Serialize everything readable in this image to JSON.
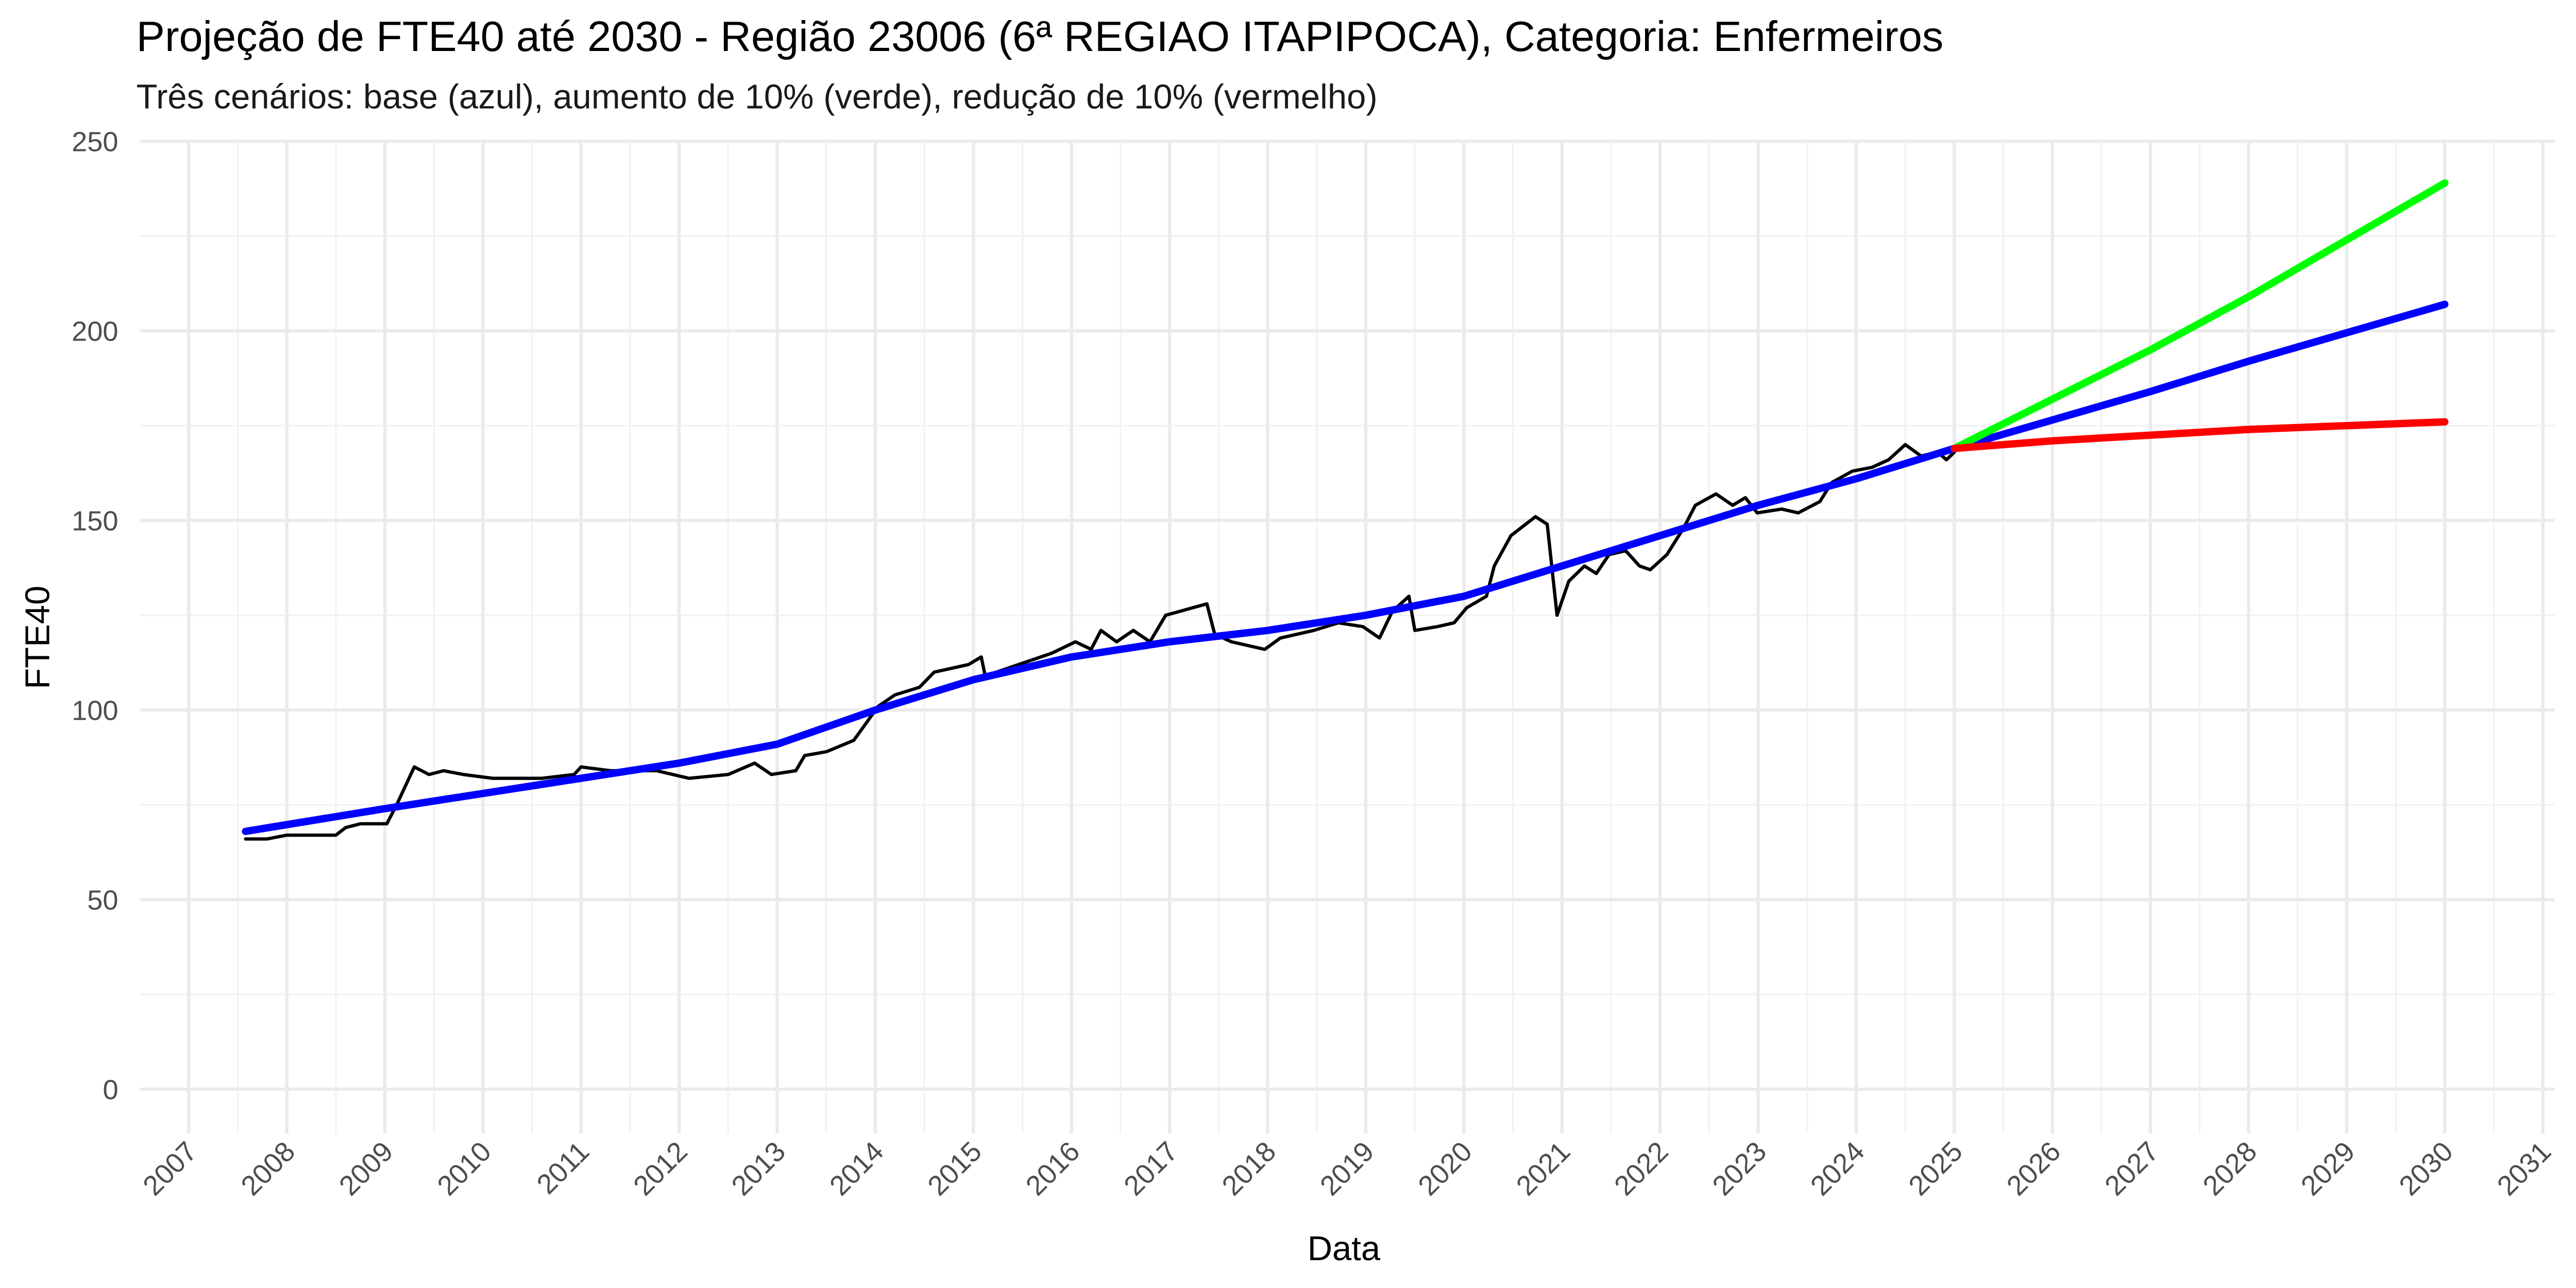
{
  "chart_data": {
    "type": "line",
    "title": "Projeção de FTE40 até 2030 - Região 23006 (6ª REGIAO ITAPIPOCA), Categoria: Enfermeiros",
    "subtitle": "Três cenários: base (azul), aumento de 10% (verde), redução de 10% (vermelho)",
    "x_label": "Data",
    "y_label": "FTE40",
    "xlim": [
      2006.5,
      2031.12
    ],
    "xticks": [
      2007,
      2008,
      2009,
      2010,
      2011,
      2012,
      2013,
      2014,
      2015,
      2016,
      2017,
      2018,
      2019,
      2020,
      2021,
      2022,
      2023,
      2024,
      2025,
      2026,
      2027,
      2028,
      2029,
      2030,
      2031
    ],
    "ylim": [
      -11.7,
      250
    ],
    "yticks": [
      0,
      50,
      100,
      150,
      200,
      250
    ],
    "grid": true,
    "series": [
      {
        "color": "#000000",
        "width": 2,
        "x": [
          2007.58,
          2007.8,
          2008.0,
          2008.5,
          2008.6,
          2008.75,
          2009.02,
          2009.12,
          2009.3,
          2009.45,
          2009.6,
          2009.8,
          2010.1,
          2010.6,
          2010.93,
          2011.0,
          2011.3,
          2011.77,
          2012.1,
          2012.5,
          2012.77,
          2012.94,
          2013.19,
          2013.28,
          2013.5,
          2013.78,
          2014.03,
          2014.2,
          2014.45,
          2014.6,
          2014.95,
          2015.08,
          2015.12,
          2015.8,
          2016.04,
          2016.2,
          2016.3,
          2016.46,
          2016.63,
          2016.8,
          2016.96,
          2017.38,
          2017.46,
          2017.63,
          2017.97,
          2018.13,
          2018.3,
          2018.47,
          2018.72,
          2018.97,
          2019.14,
          2019.27,
          2019.44,
          2019.5,
          2019.73,
          2019.9,
          2020.03,
          2020.23,
          2020.31,
          2020.48,
          2020.73,
          2020.85,
          2020.95,
          2021.07,
          2021.23,
          2021.35,
          2021.48,
          2021.65,
          2021.79,
          2021.9,
          2022.07,
          2022.24,
          2022.36,
          2022.57,
          2022.74,
          2022.87,
          2022.99,
          2023.24,
          2023.41,
          2023.63,
          2023.75,
          2023.96,
          2024.16,
          2024.33,
          2024.5,
          2024.66,
          2024.83,
          2024.92,
          2025.0
        ],
        "values": [
          66,
          66,
          67,
          67,
          69,
          70,
          70,
          75,
          85,
          83,
          84,
          83,
          82,
          82,
          83,
          85,
          84,
          84,
          82,
          83,
          86,
          83,
          84,
          88,
          89,
          92,
          101,
          104,
          106,
          110,
          112,
          114,
          109,
          115,
          118,
          116,
          121,
          118,
          121,
          118,
          125,
          128,
          120,
          118,
          116,
          119,
          120,
          121,
          123,
          122,
          119,
          126,
          130,
          121,
          122,
          123,
          127,
          130,
          138,
          146,
          151,
          149,
          125,
          134,
          138,
          136,
          141,
          142,
          138,
          137,
          141,
          148,
          154,
          157,
          154,
          156,
          152,
          153,
          152,
          155,
          160,
          163,
          164,
          166,
          170,
          167,
          168,
          166,
          168
        ]
      },
      {
        "color": "#0000ff",
        "width": 4.5,
        "x": [
          2007.58,
          2009,
          2010,
          2011,
          2012,
          2013,
          2014,
          2015,
          2016,
          2017,
          2018,
          2019,
          2020,
          2021,
          2022,
          2023,
          2024,
          2025,
          2026,
          2027,
          2028,
          2029,
          2030
        ],
        "values": [
          68,
          74,
          78,
          82,
          86,
          91,
          100,
          108,
          114,
          118,
          121,
          125,
          130,
          138,
          146,
          154,
          161,
          169,
          176.5,
          184,
          192,
          199.5,
          207
        ]
      },
      {
        "color": "#00ff00",
        "width": 4.5,
        "x": [
          2025,
          2026,
          2027,
          2028,
          2029,
          2030
        ],
        "values": [
          169,
          182,
          195,
          209,
          224,
          239
        ]
      },
      {
        "color": "#ff0000",
        "width": 4.5,
        "x": [
          2025,
          2026,
          2027,
          2028,
          2029,
          2030
        ],
        "values": [
          169,
          171,
          172.5,
          174,
          175,
          176
        ]
      }
    ]
  }
}
